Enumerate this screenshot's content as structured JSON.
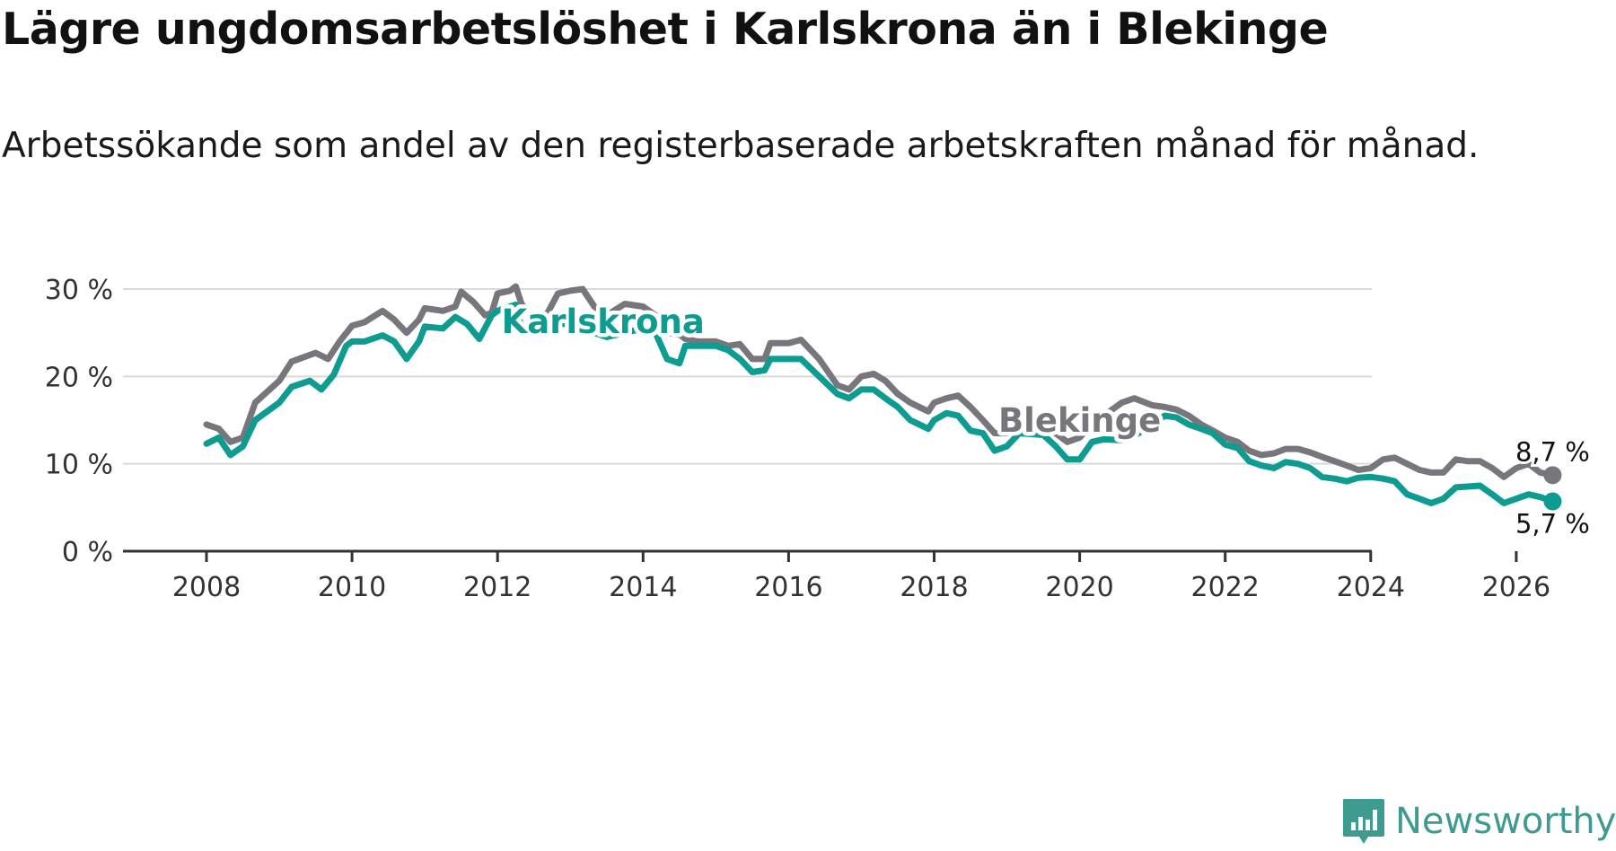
{
  "title": "Lägre ungdomsarbetslöshet i Karlskrona än i Blekinge",
  "subtitle": "Arbetssökande som andel av den registerbaserade arbetskraften månad för månad.",
  "brand": {
    "name": "Newsworthy",
    "icon": "newsworthy-logo-icon",
    "color": "#3f9a8f"
  },
  "chart_data": {
    "type": "line",
    "ylim": [
      0,
      30
    ],
    "yticks": [
      0,
      10,
      20,
      30
    ],
    "ytick_labels": [
      "0 %",
      "10 %",
      "20 %",
      "30 %"
    ],
    "xlim": [
      2007.65,
      2027.0
    ],
    "xticks": [
      2008,
      2010,
      2012,
      2014,
      2016,
      2018,
      2020,
      2022,
      2024,
      2026
    ],
    "xtick_labels": [
      "2008",
      "2010",
      "2012",
      "2014",
      "2016",
      "2018",
      "2020",
      "2022",
      "2024",
      "2026"
    ],
    "grid": true,
    "series": [
      {
        "name": "Blekinge",
        "color": "#77767c",
        "end_label": "8,7 %",
        "points": [
          [
            2008.0,
            14.5
          ],
          [
            2008.17,
            14.0
          ],
          [
            2008.33,
            12.5
          ],
          [
            2008.5,
            13.0
          ],
          [
            2008.67,
            17.0
          ],
          [
            2009.0,
            19.5
          ],
          [
            2009.17,
            21.7
          ],
          [
            2009.5,
            22.7
          ],
          [
            2009.67,
            22.0
          ],
          [
            2009.83,
            24.0
          ],
          [
            2010.0,
            25.8
          ],
          [
            2010.17,
            26.2
          ],
          [
            2010.42,
            27.5
          ],
          [
            2010.58,
            26.5
          ],
          [
            2010.75,
            25.0
          ],
          [
            2010.92,
            26.5
          ],
          [
            2011.0,
            27.8
          ],
          [
            2011.25,
            27.5
          ],
          [
            2011.42,
            28.0
          ],
          [
            2011.5,
            29.7
          ],
          [
            2011.67,
            28.5
          ],
          [
            2011.83,
            27.0
          ],
          [
            2011.92,
            27.3
          ],
          [
            2012.0,
            29.5
          ],
          [
            2012.17,
            29.8
          ],
          [
            2012.25,
            30.3
          ],
          [
            2012.33,
            28.3
          ],
          [
            2012.5,
            26.5
          ],
          [
            2012.67,
            27.0
          ],
          [
            2012.83,
            29.5
          ],
          [
            2013.0,
            29.8
          ],
          [
            2013.17,
            30.0
          ],
          [
            2013.33,
            28.0
          ],
          [
            2013.5,
            27.0
          ],
          [
            2013.75,
            28.3
          ],
          [
            2014.0,
            28.0
          ],
          [
            2014.17,
            27.0
          ],
          [
            2014.33,
            25.0
          ],
          [
            2014.5,
            24.8
          ],
          [
            2014.58,
            24.3
          ],
          [
            2014.75,
            24.0
          ],
          [
            2015.0,
            24.0
          ],
          [
            2015.17,
            23.5
          ],
          [
            2015.33,
            23.7
          ],
          [
            2015.5,
            22.0
          ],
          [
            2015.67,
            22.0
          ],
          [
            2015.75,
            23.8
          ],
          [
            2016.0,
            23.8
          ],
          [
            2016.17,
            24.2
          ],
          [
            2016.42,
            22.0
          ],
          [
            2016.67,
            19.0
          ],
          [
            2016.83,
            18.5
          ],
          [
            2017.0,
            20.0
          ],
          [
            2017.17,
            20.3
          ],
          [
            2017.33,
            19.5
          ],
          [
            2017.5,
            18.0
          ],
          [
            2017.67,
            17.0
          ],
          [
            2017.92,
            16.0
          ],
          [
            2018.0,
            17.0
          ],
          [
            2018.17,
            17.5
          ],
          [
            2018.33,
            17.8
          ],
          [
            2018.5,
            16.5
          ],
          [
            2018.67,
            15.0
          ],
          [
            2018.83,
            13.5
          ],
          [
            2019.0,
            13.5
          ],
          [
            2019.17,
            14.8
          ],
          [
            2019.5,
            15.0
          ],
          [
            2019.67,
            13.5
          ],
          [
            2019.83,
            12.5
          ],
          [
            2020.0,
            13.0
          ],
          [
            2020.17,
            14.5
          ],
          [
            2020.33,
            15.5
          ],
          [
            2020.58,
            17.0
          ],
          [
            2020.75,
            17.5
          ],
          [
            2021.0,
            16.7
          ],
          [
            2021.17,
            16.5
          ],
          [
            2021.33,
            16.2
          ],
          [
            2021.5,
            15.5
          ],
          [
            2021.67,
            14.5
          ],
          [
            2021.83,
            13.8
          ],
          [
            2022.0,
            13.0
          ],
          [
            2022.17,
            12.5
          ],
          [
            2022.33,
            11.5
          ],
          [
            2022.5,
            11.0
          ],
          [
            2022.67,
            11.2
          ],
          [
            2022.83,
            11.7
          ],
          [
            2023.0,
            11.7
          ],
          [
            2023.17,
            11.3
          ],
          [
            2023.33,
            10.8
          ],
          [
            2023.5,
            10.3
          ],
          [
            2023.67,
            9.8
          ],
          [
            2023.83,
            9.3
          ],
          [
            2024.0,
            9.5
          ],
          [
            2024.17,
            10.5
          ],
          [
            2024.33,
            10.7
          ],
          [
            2024.5,
            10.0
          ],
          [
            2024.67,
            9.3
          ],
          [
            2024.83,
            9.0
          ],
          [
            2025.0,
            9.0
          ],
          [
            2025.17,
            10.5
          ],
          [
            2025.33,
            10.3
          ],
          [
            2025.5,
            10.3
          ],
          [
            2025.67,
            9.5
          ],
          [
            2025.83,
            8.5
          ],
          [
            2026.0,
            9.5
          ],
          [
            2026.17,
            10.0
          ],
          [
            2026.33,
            9.0
          ],
          [
            2026.5,
            8.7
          ]
        ]
      },
      {
        "name": "Karlskrona",
        "color": "#0e9c90",
        "end_label": "5,7 %",
        "points": [
          [
            2008.0,
            12.3
          ],
          [
            2008.17,
            13.0
          ],
          [
            2008.33,
            11.0
          ],
          [
            2008.5,
            12.0
          ],
          [
            2008.67,
            15.0
          ],
          [
            2009.0,
            17.0
          ],
          [
            2009.17,
            18.8
          ],
          [
            2009.42,
            19.5
          ],
          [
            2009.58,
            18.5
          ],
          [
            2009.75,
            20.2
          ],
          [
            2009.92,
            23.5
          ],
          [
            2010.0,
            24.0
          ],
          [
            2010.17,
            24.0
          ],
          [
            2010.42,
            24.7
          ],
          [
            2010.58,
            24.0
          ],
          [
            2010.75,
            22.0
          ],
          [
            2010.92,
            24.0
          ],
          [
            2011.0,
            25.7
          ],
          [
            2011.25,
            25.5
          ],
          [
            2011.42,
            26.8
          ],
          [
            2011.58,
            26.0
          ],
          [
            2011.75,
            24.3
          ],
          [
            2011.92,
            27.0
          ],
          [
            2012.0,
            27.5
          ],
          [
            2012.17,
            28.0
          ],
          [
            2012.25,
            28.2
          ],
          [
            2012.33,
            25.5
          ],
          [
            2012.5,
            25.0
          ],
          [
            2012.67,
            25.2
          ],
          [
            2012.83,
            26.0
          ],
          [
            2013.0,
            26.0
          ],
          [
            2013.17,
            25.8
          ],
          [
            2013.33,
            25.0
          ],
          [
            2013.5,
            24.5
          ],
          [
            2013.75,
            25.0
          ],
          [
            2014.0,
            25.5
          ],
          [
            2014.17,
            25.0
          ],
          [
            2014.33,
            22.0
          ],
          [
            2014.5,
            21.5
          ],
          [
            2014.58,
            23.5
          ],
          [
            2014.75,
            23.5
          ],
          [
            2015.0,
            23.5
          ],
          [
            2015.17,
            23.0
          ],
          [
            2015.33,
            22.0
          ],
          [
            2015.5,
            20.5
          ],
          [
            2015.67,
            20.7
          ],
          [
            2015.75,
            22.0
          ],
          [
            2016.0,
            22.0
          ],
          [
            2016.17,
            22.0
          ],
          [
            2016.42,
            20.0
          ],
          [
            2016.67,
            18.0
          ],
          [
            2016.83,
            17.5
          ],
          [
            2017.0,
            18.5
          ],
          [
            2017.17,
            18.5
          ],
          [
            2017.33,
            17.5
          ],
          [
            2017.5,
            16.5
          ],
          [
            2017.67,
            15.0
          ],
          [
            2017.92,
            14.0
          ],
          [
            2018.0,
            15.0
          ],
          [
            2018.17,
            15.8
          ],
          [
            2018.33,
            15.5
          ],
          [
            2018.5,
            13.8
          ],
          [
            2018.67,
            13.5
          ],
          [
            2018.83,
            11.5
          ],
          [
            2019.0,
            12.0
          ],
          [
            2019.17,
            13.5
          ],
          [
            2019.5,
            13.3
          ],
          [
            2019.67,
            12.0
          ],
          [
            2019.83,
            10.5
          ],
          [
            2020.0,
            10.5
          ],
          [
            2020.17,
            12.5
          ],
          [
            2020.33,
            12.8
          ],
          [
            2020.58,
            12.7
          ],
          [
            2020.75,
            13.2
          ],
          [
            2021.0,
            14.5
          ],
          [
            2021.17,
            15.5
          ],
          [
            2021.33,
            15.3
          ],
          [
            2021.5,
            14.5
          ],
          [
            2021.67,
            14.0
          ],
          [
            2021.83,
            13.5
          ],
          [
            2022.0,
            12.2
          ],
          [
            2022.17,
            11.8
          ],
          [
            2022.33,
            10.3
          ],
          [
            2022.5,
            9.8
          ],
          [
            2022.67,
            9.5
          ],
          [
            2022.83,
            10.2
          ],
          [
            2023.0,
            10.0
          ],
          [
            2023.17,
            9.5
          ],
          [
            2023.33,
            8.5
          ],
          [
            2023.5,
            8.3
          ],
          [
            2023.67,
            8.0
          ],
          [
            2023.83,
            8.4
          ],
          [
            2024.0,
            8.5
          ],
          [
            2024.17,
            8.3
          ],
          [
            2024.33,
            8.0
          ],
          [
            2024.5,
            6.5
          ],
          [
            2024.67,
            6.0
          ],
          [
            2024.83,
            5.5
          ],
          [
            2025.0,
            6.0
          ],
          [
            2025.17,
            7.3
          ],
          [
            2025.33,
            7.4
          ],
          [
            2025.5,
            7.5
          ],
          [
            2025.67,
            6.5
          ],
          [
            2025.83,
            5.5
          ],
          [
            2026.0,
            6.0
          ],
          [
            2026.17,
            6.5
          ],
          [
            2026.33,
            6.2
          ],
          [
            2026.5,
            5.7
          ]
        ]
      }
    ],
    "annotations": [
      {
        "text": "Karlskrona",
        "series": "Karlskrona",
        "at_x": 2013.45,
        "at_y": 26.3
      },
      {
        "text": "Blekinge",
        "series": "Blekinge",
        "at_x": 2020.0,
        "at_y": 15.0
      }
    ]
  }
}
